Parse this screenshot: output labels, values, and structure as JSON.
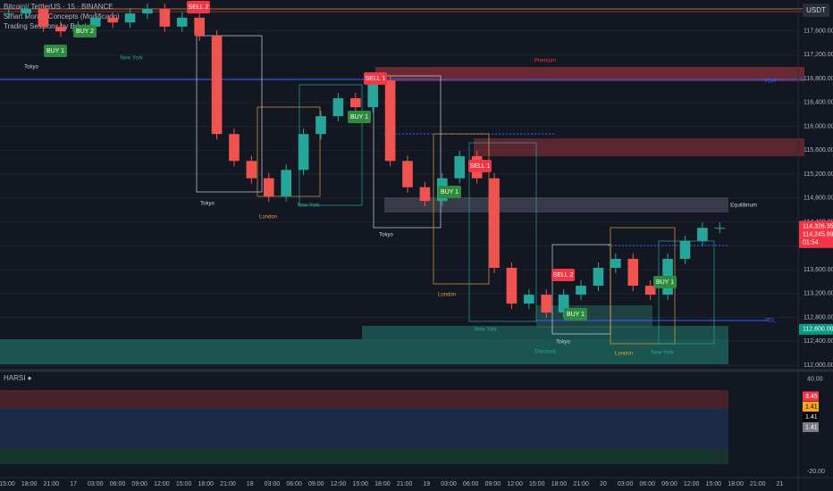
{
  "header": {
    "symbol": "Bitcoin / TetherUS · 15 · BINANCE",
    "indicators": [
      "Smart Money Concepts (Modificado)",
      "Trading Sessions by Brackoff"
    ],
    "currency": "USDT"
  },
  "chart_data": {
    "type": "candlestick",
    "closes": [
      117890,
      117970,
      117670,
      117590,
      117670,
      117820,
      117740,
      117890,
      117970,
      117670,
      117820,
      117520,
      115870,
      115420,
      115130,
      114830,
      115270,
      115870,
      116170,
      116470,
      116320,
      116770,
      115420,
      114980,
      114750,
      115130,
      115500,
      115130,
      113630,
      113030,
      113180,
      112880,
      113180,
      113330,
      113630,
      113780,
      113330,
      113180,
      113780,
      114080,
      114300,
      114300
    ],
    "ylim": [
      111910,
      118116
    ],
    "yticks": [
      {
        "value": 112000,
        "label": "112,000.00"
      },
      {
        "value": 112400,
        "label": "112,400.00"
      },
      {
        "value": 112800,
        "label": "112,800.00"
      },
      {
        "value": 113200,
        "label": "113,200.00"
      },
      {
        "value": 113600,
        "label": "113,600.00"
      },
      {
        "value": 114000,
        "label": "114,000.00"
      },
      {
        "value": 114400,
        "label": "114,400.00"
      },
      {
        "value": 114800,
        "label": "114,800.00"
      },
      {
        "value": 115200,
        "label": "115,200.00"
      },
      {
        "value": 115600,
        "label": "115,600.00"
      },
      {
        "value": 116000,
        "label": "116,000.00"
      },
      {
        "value": 116400,
        "label": "116,400.00"
      },
      {
        "value": 116800,
        "label": "116,800.00"
      },
      {
        "value": 117200,
        "label": "117,200.00"
      },
      {
        "value": 117600,
        "label": "117,600.00"
      }
    ],
    "price_badges": [
      {
        "value": 114326.35,
        "label": "114,326.35"
      },
      {
        "value": 114245.99,
        "label": "114,245.99"
      },
      {
        "value": 112600,
        "label": "112,600.00"
      }
    ],
    "countdown": "01:54",
    "xticks": [
      "15:00",
      "18:00",
      "21:00",
      "17",
      "03:00",
      "06:00",
      "09:00",
      "12:00",
      "15:00",
      "18:00",
      "21:00",
      "18",
      "03:00",
      "06:00",
      "09:00",
      "12:00",
      "15:00",
      "18:00",
      "21:00",
      "19",
      "03:00",
      "06:00",
      "09:00",
      "12:00",
      "15:00",
      "18:00",
      "21:00",
      "20",
      "03:00",
      "06:00",
      "09:00",
      "12:00",
      "15:00",
      "18:00",
      "21:00",
      "21"
    ],
    "signals": [
      "SELL 2",
      "BUY 2",
      "BUY 1",
      "SELL 1",
      "BUY 1",
      "SELL 1",
      "BUY 1",
      "SELL 2",
      "BUY 1",
      "BUY 1"
    ],
    "annotations": [
      "Tokyo",
      "New York",
      "Tokyo",
      "London",
      "New York",
      "Tokyo",
      "London",
      "New York",
      "Tokyo",
      "London",
      "New York",
      "Premium",
      "Equilibrium",
      "Discount",
      "PDL",
      "PDH"
    ]
  },
  "oscillator": {
    "title": "HARSI ●",
    "ylim": [
      -24,
      44
    ],
    "yticks": [
      {
        "value": 40,
        "label": "40.00"
      },
      {
        "value": -20,
        "label": "-20.00"
      }
    ],
    "badges": [
      "3.45",
      "1.41",
      "1.41",
      "1.41"
    ]
  }
}
